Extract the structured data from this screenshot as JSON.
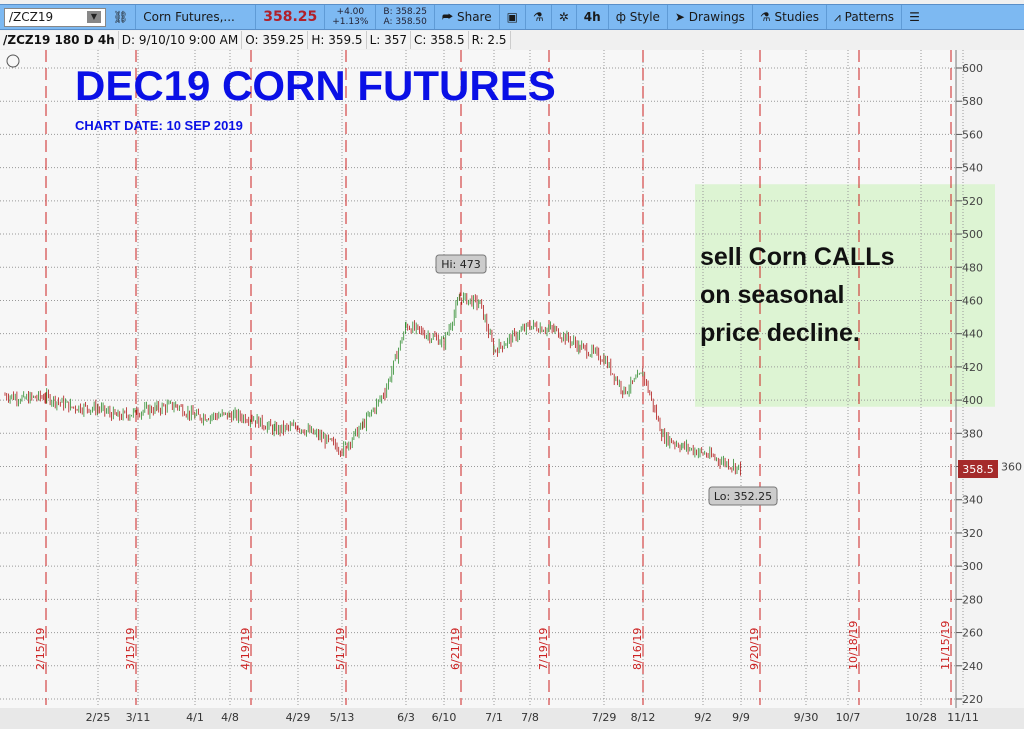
{
  "toolbar": {
    "symbol": "/ZCZ19",
    "description": "Corn Futures,...",
    "last": "358.25",
    "change": "+4.00",
    "change_pct": "+1.13%",
    "bid": "B: 358.25",
    "ask": "A: 358.50",
    "share": "Share",
    "interval": "4h",
    "style": "Style",
    "drawings": "Drawings",
    "studies": "Studies",
    "patterns": "Patterns"
  },
  "infobar": {
    "title": "/ZCZ19 180 D 4h",
    "date": "D: 9/10/10 9:00 AM",
    "open": "O: 359.25",
    "high": "H: 359.5",
    "low": "L: 357",
    "close": "C: 358.5",
    "range": "R: 2.5"
  },
  "annotations": {
    "title": "DEC19 CORN FUTURES",
    "subtitle": "CHART DATE: 10 SEP 2019",
    "note": [
      "sell  Corn CALLs",
      "on seasonal",
      "price decline."
    ],
    "hi_label": "Hi: 473",
    "lo_label": "Lo: 352.25",
    "last_label": "358.5"
  },
  "colors": {
    "title": "#0a10e6",
    "candle_up": "#2e8b2e",
    "candle_down": "#b01818",
    "marker": "#cc2222",
    "note_bg": "#d8f3cc",
    "last_bg": "#a52a2a"
  },
  "chart_data": {
    "type": "candlestick",
    "ylim": [
      220,
      605
    ],
    "yticks": [
      220,
      240,
      260,
      280,
      300,
      320,
      340,
      360,
      380,
      400,
      420,
      440,
      460,
      480,
      500,
      520,
      540,
      560,
      580,
      600
    ],
    "xticks": [
      "2/25",
      "3/11",
      "4/1",
      "4/8",
      "4/29",
      "5/13",
      "6/3",
      "6/10",
      "7/1",
      "7/8",
      "7/29",
      "8/12",
      "9/2",
      "9/9",
      "9/30",
      "10/7",
      "10/28",
      "11/11"
    ],
    "grid": true,
    "markers": [
      "2/15/19",
      "3/15/19",
      "4/19/19",
      "5/17/19",
      "6/21/19",
      "7/19/19",
      "8/16/19",
      "9/20/19",
      "10/18/19",
      "11/15/19"
    ],
    "series": {
      "dates": [
        "1/28",
        "2/4",
        "2/11",
        "2/18",
        "2/25",
        "3/4",
        "3/11",
        "3/18",
        "3/25",
        "4/1",
        "4/8",
        "4/15",
        "4/22",
        "4/29",
        "5/6",
        "5/13",
        "5/20",
        "5/27",
        "6/3",
        "6/10",
        "6/17",
        "6/24",
        "7/1",
        "7/8",
        "7/15",
        "7/22",
        "7/29",
        "8/5",
        "8/12",
        "8/19",
        "8/26",
        "9/2",
        "9/9"
      ],
      "close": [
        403,
        401,
        402,
        396,
        395,
        390,
        393,
        395,
        397,
        390,
        391,
        389,
        382,
        384,
        378,
        370,
        385,
        405,
        445,
        435,
        462,
        458,
        430,
        445,
        442,
        432,
        425,
        405,
        416,
        378,
        372,
        368,
        358.5
      ]
    },
    "high": 473,
    "low": 352.25,
    "shaded_zone": {
      "from": "9/2",
      "to": "11/11",
      "low": 396,
      "high": 530
    }
  }
}
